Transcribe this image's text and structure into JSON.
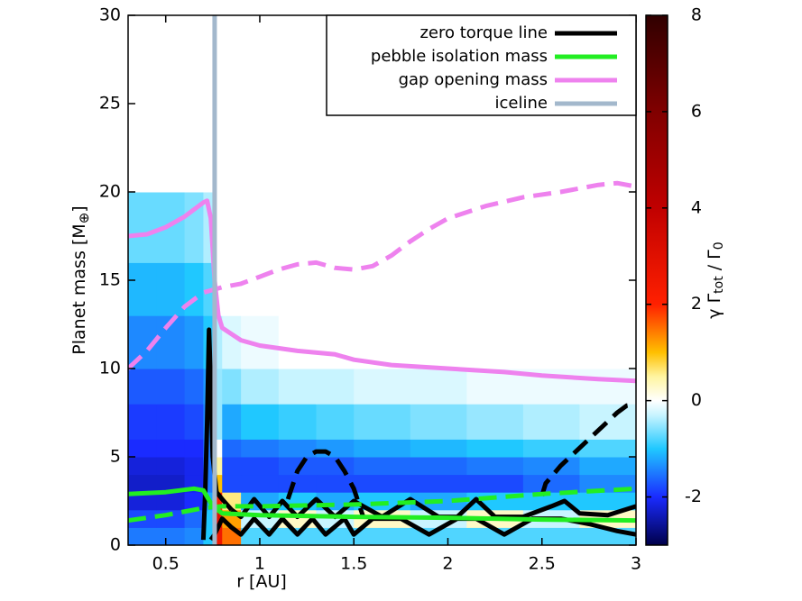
{
  "chart_data": {
    "type": "torque-map",
    "x_label": "r [AU]",
    "y_label_parts": [
      "Planet mass [M",
      "⊕",
      "]"
    ],
    "colorbar_label_parts": [
      "γ Γ",
      "tot",
      " / Γ",
      "0"
    ],
    "xlim": [
      0.3,
      3.0
    ],
    "ylim": [
      0,
      30
    ],
    "xticks": [
      0.5,
      1,
      1.5,
      2,
      2.5,
      3
    ],
    "yticks": [
      0,
      5,
      10,
      15,
      20,
      25,
      30
    ],
    "clim": [
      -3,
      8
    ],
    "cticks": [
      -2,
      0,
      2,
      4,
      6,
      8
    ],
    "colormap": [
      {
        "value": -3,
        "color": "#00004a"
      },
      {
        "value": -2,
        "color": "#1a2bff"
      },
      {
        "value": -1,
        "color": "#20c8ff"
      },
      {
        "value": -0.3,
        "color": "#c8f4ff"
      },
      {
        "value": 0,
        "color": "#ffffff"
      },
      {
        "value": 0.5,
        "color": "#fff5a0"
      },
      {
        "value": 1,
        "color": "#ffc000"
      },
      {
        "value": 2,
        "color": "#ff2000"
      },
      {
        "value": 4,
        "color": "#c00000"
      },
      {
        "value": 6,
        "color": "#800000"
      },
      {
        "value": 8,
        "color": "#300000"
      }
    ],
    "heatmap": {
      "x_edges": [
        0.3,
        0.45,
        0.6,
        0.7,
        0.76,
        0.8,
        0.9,
        1.1,
        1.3,
        1.5,
        1.8,
        2.1,
        2.4,
        2.7,
        3.0
      ],
      "y_edges": [
        0,
        1,
        2,
        3,
        4,
        5,
        6,
        8,
        10,
        13,
        16,
        20,
        30
      ],
      "values": [
        [
          -1.5,
          -1.5,
          -1.4,
          -1,
          2.5,
          1.5,
          -0.8,
          -0.8,
          -0.8,
          -0.8,
          -0.8,
          -0.8,
          -0.8,
          -0.8
        ],
        [
          -1.8,
          -1.8,
          -1.6,
          -1,
          3,
          1.2,
          -0.3,
          0.3,
          -0.3,
          0.3,
          -0.3,
          0.3,
          -0.3,
          0.3
        ],
        [
          -2.2,
          -2.2,
          -2,
          -1.2,
          2,
          0.6,
          -1.2,
          -1,
          -1.2,
          -1,
          -1.2,
          -1,
          -1,
          -1
        ],
        [
          -2.3,
          -2.3,
          -2.1,
          -1.5,
          1,
          -1.8,
          -1.8,
          -1.8,
          -1.8,
          -1.8,
          -1.8,
          -1.8,
          -1.6,
          -1.4
        ],
        [
          -2.2,
          -2.2,
          -2.1,
          -1.5,
          0.5,
          -1.8,
          -1.8,
          -1.7,
          -1.7,
          -1.6,
          -1.6,
          -1.5,
          -1.4,
          -1.2
        ],
        [
          -2,
          -2,
          -2,
          -1.5,
          0,
          -1.6,
          -1.5,
          -1.4,
          -1.3,
          -1.2,
          -1.1,
          -1,
          -0.9,
          -0.8
        ],
        [
          -1.9,
          -1.9,
          -1.8,
          -1.4,
          -0.5,
          -1.2,
          -1,
          -0.9,
          -0.8,
          -0.7,
          -0.6,
          -0.5,
          -0.4,
          -0.3
        ],
        [
          -1.7,
          -1.7,
          -1.6,
          -1.3,
          -0.5,
          -0.6,
          -0.4,
          -0.3,
          -0.3,
          -0.2,
          -0.2,
          -0.1,
          -0.1,
          -0.1
        ],
        [
          -1.4,
          -1.4,
          -1.3,
          -1,
          -0.4,
          -0.2,
          -0.1,
          0,
          0,
          0,
          0,
          0,
          0,
          0
        ],
        [
          -1.1,
          -1.1,
          -1,
          -0.8,
          0,
          0,
          0,
          0,
          0,
          0,
          0,
          0,
          0,
          0
        ],
        [
          -0.7,
          -0.7,
          -0.6,
          -0.4,
          0,
          0,
          0,
          0,
          0,
          0,
          0,
          0,
          0,
          0
        ],
        [
          0,
          0,
          0,
          0,
          0,
          0,
          0,
          0,
          0,
          0,
          0,
          0,
          0,
          0
        ]
      ]
    },
    "series": [
      {
        "name": "zero torque line",
        "color": "#000000",
        "pieces": [
          {
            "style": "solid",
            "x": [
              0.7,
              0.71,
              0.72,
              0.73,
              0.74,
              0.75,
              0.77,
              0.8,
              0.85
            ],
            "y": [
              0.3,
              3,
              7,
              12.2,
              9,
              5,
              3,
              2.6,
              2.0
            ]
          },
          {
            "style": "solid",
            "x": [
              0.85,
              0.9,
              0.97,
              1.05,
              1.12,
              1.2,
              1.3,
              1.4,
              1.5,
              1.65,
              1.8,
              1.95,
              2.05,
              2.15,
              2.25,
              2.4,
              2.55,
              2.62,
              2.7,
              2.85,
              3.0
            ],
            "y": [
              2.0,
              1.6,
              2.6,
              1.6,
              2.5,
              1.6,
              2.6,
              1.6,
              2.5,
              1.6,
              2.6,
              1.6,
              1.6,
              2.6,
              1.6,
              1.6,
              2.2,
              2.5,
              1.8,
              1.7,
              2.2
            ]
          },
          {
            "style": "solid",
            "x": [
              0.74,
              0.76,
              0.8,
              0.85,
              0.9,
              0.97,
              1.05,
              1.12,
              1.2,
              1.28,
              1.35,
              1.45,
              1.5,
              1.6,
              1.75,
              1.9,
              2.05,
              2.15,
              2.3,
              2.45,
              2.6,
              2.75,
              2.9,
              3.0
            ],
            "y": [
              0.3,
              0.6,
              1.5,
              1.0,
              0.6,
              1.5,
              0.6,
              1.5,
              0.6,
              1.5,
              0.6,
              1.5,
              0.6,
              1.5,
              1.5,
              0.6,
              1.5,
              1.5,
              0.6,
              1.5,
              1.5,
              1.2,
              0.8,
              0.6
            ]
          },
          {
            "style": "dashed",
            "x": [
              1.15,
              1.2,
              1.25,
              1.3,
              1.35,
              1.4,
              1.45,
              1.5,
              1.55
            ],
            "y": [
              2.6,
              4.2,
              5.0,
              5.3,
              5.3,
              5.0,
              4.2,
              3.2,
              1.6
            ]
          },
          {
            "style": "dashed",
            "x": [
              2.5,
              2.52,
              2.6,
              2.7,
              2.8,
              2.9,
              2.95,
              3.0
            ],
            "y": [
              2.8,
              3.5,
              4.5,
              5.5,
              6.5,
              7.5,
              7.9,
              8.0
            ]
          }
        ]
      },
      {
        "name": "pebble isolation mass",
        "color": "#22ee22",
        "pieces": [
          {
            "style": "solid",
            "x": [
              0.3,
              0.5,
              0.65,
              0.7,
              0.75,
              0.8,
              1.0,
              1.5,
              2.0,
              2.5,
              3.0
            ],
            "y": [
              2.9,
              3.0,
              3.2,
              3.1,
              2.2,
              1.8,
              1.7,
              1.6,
              1.55,
              1.45,
              1.4
            ]
          },
          {
            "style": "dashed",
            "x": [
              0.3,
              0.5,
              0.7,
              0.8,
              1.0,
              1.5,
              2.0,
              2.5,
              3.0
            ],
            "y": [
              1.4,
              1.7,
              2.1,
              2.2,
              2.2,
              2.3,
              2.5,
              2.9,
              3.2
            ]
          }
        ]
      },
      {
        "name": "gap opening mass",
        "color": "#ee82ee",
        "pieces": [
          {
            "style": "solid",
            "x": [
              0.3,
              0.4,
              0.5,
              0.6,
              0.7,
              0.72,
              0.74,
              0.76,
              0.78,
              0.8,
              0.9,
              1.0,
              1.2,
              1.4,
              1.5,
              1.7,
              2.0,
              2.3,
              2.5,
              2.8,
              3.0
            ],
            "y": [
              17.5,
              17.6,
              18.0,
              18.6,
              19.4,
              19.5,
              18.5,
              15,
              13,
              12.3,
              11.6,
              11.3,
              11.0,
              10.8,
              10.5,
              10.2,
              10.0,
              9.8,
              9.6,
              9.4,
              9.3
            ]
          },
          {
            "style": "dashed",
            "x": [
              0.3,
              0.4,
              0.5,
              0.6,
              0.7,
              0.8,
              0.9,
              1.0,
              1.1,
              1.2,
              1.3,
              1.4,
              1.5,
              1.6,
              1.7,
              1.8,
              1.9,
              2.0,
              2.2,
              2.4,
              2.6,
              2.8,
              2.9,
              3.0
            ],
            "y": [
              10,
              11,
              12.3,
              13.5,
              14.3,
              14.6,
              14.8,
              15.2,
              15.6,
              15.9,
              16.0,
              15.7,
              15.6,
              15.8,
              16.4,
              17.2,
              17.9,
              18.5,
              19.2,
              19.7,
              20.0,
              20.4,
              20.5,
              20.3
            ]
          }
        ]
      },
      {
        "name": "iceline",
        "color": "#a3b8cc",
        "x": 0.76
      }
    ]
  }
}
